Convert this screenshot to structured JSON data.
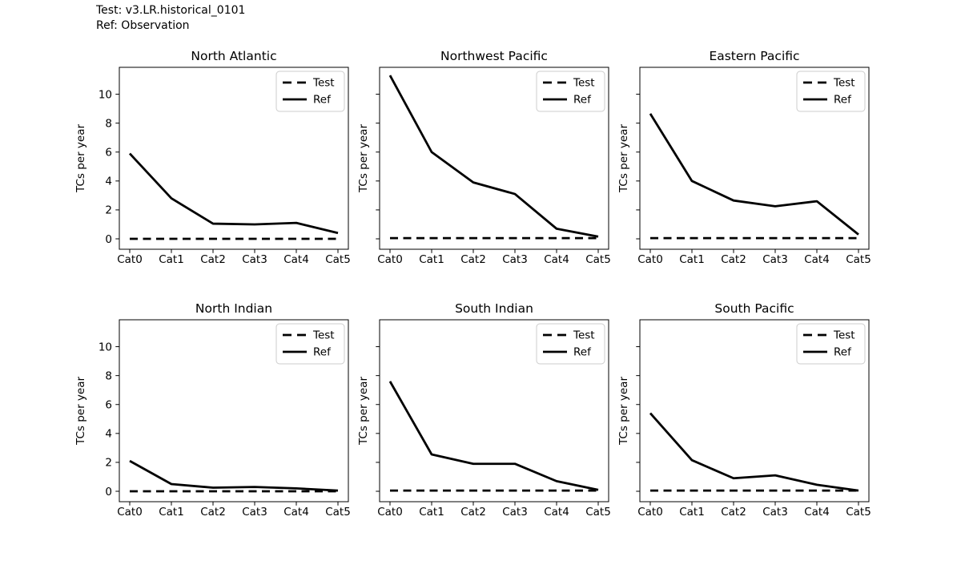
{
  "header": {
    "line1": "Test: v3.LR.historical_0101",
    "line2": "Ref: Observation"
  },
  "colors": {
    "line": "#000000",
    "legend_border": "#cccccc",
    "background": "#ffffff"
  },
  "chart_data": [
    {
      "type": "line",
      "title": "North Atlantic",
      "ylabel": "TCs per year",
      "categories": [
        "Cat0",
        "Cat1",
        "Cat2",
        "Cat3",
        "Cat4",
        "Cat5"
      ],
      "yticks": [
        0,
        2,
        4,
        6,
        8,
        10
      ],
      "ylim": [
        -0.72,
        11.86
      ],
      "show_ytick_labels": true,
      "grid": false,
      "legend_position": "upper right",
      "series": [
        {
          "name": "Test",
          "style": "dashed",
          "values": [
            0.0,
            0.0,
            0.0,
            0.0,
            0.0,
            0.0
          ]
        },
        {
          "name": "Ref",
          "style": "solid",
          "values": [
            5.9,
            2.8,
            1.05,
            1.0,
            1.1,
            0.4
          ]
        }
      ]
    },
    {
      "type": "line",
      "title": "Northwest Pacific",
      "ylabel": "TCs per year",
      "categories": [
        "Cat0",
        "Cat1",
        "Cat2",
        "Cat3",
        "Cat4",
        "Cat5"
      ],
      "yticks": [
        0,
        2,
        4,
        6,
        8,
        10
      ],
      "ylim": [
        -0.72,
        11.86
      ],
      "show_ytick_labels": false,
      "grid": false,
      "legend_position": "upper right",
      "series": [
        {
          "name": "Test",
          "style": "dashed",
          "values": [
            0.05,
            0.05,
            0.05,
            0.05,
            0.05,
            0.05
          ]
        },
        {
          "name": "Ref",
          "style": "solid",
          "values": [
            11.3,
            6.0,
            3.9,
            3.1,
            0.7,
            0.15
          ]
        }
      ]
    },
    {
      "type": "line",
      "title": "Eastern Pacific",
      "ylabel": "TCs per year",
      "categories": [
        "Cat0",
        "Cat1",
        "Cat2",
        "Cat3",
        "Cat4",
        "Cat5"
      ],
      "yticks": [
        0,
        2,
        4,
        6,
        8,
        10
      ],
      "ylim": [
        -0.72,
        11.86
      ],
      "show_ytick_labels": false,
      "grid": false,
      "legend_position": "upper right",
      "series": [
        {
          "name": "Test",
          "style": "dashed",
          "values": [
            0.05,
            0.05,
            0.05,
            0.05,
            0.05,
            0.05
          ]
        },
        {
          "name": "Ref",
          "style": "solid",
          "values": [
            8.65,
            4.0,
            2.65,
            2.25,
            2.6,
            0.3
          ]
        }
      ]
    },
    {
      "type": "line",
      "title": "North Indian",
      "ylabel": "TCs per year",
      "categories": [
        "Cat0",
        "Cat1",
        "Cat2",
        "Cat3",
        "Cat4",
        "Cat5"
      ],
      "yticks": [
        0,
        2,
        4,
        6,
        8,
        10
      ],
      "ylim": [
        -0.72,
        11.86
      ],
      "show_ytick_labels": true,
      "grid": false,
      "legend_position": "upper right",
      "series": [
        {
          "name": "Test",
          "style": "dashed",
          "values": [
            0.0,
            0.0,
            0.0,
            0.0,
            0.0,
            0.0
          ]
        },
        {
          "name": "Ref",
          "style": "solid",
          "values": [
            2.1,
            0.5,
            0.25,
            0.3,
            0.2,
            0.05
          ]
        }
      ]
    },
    {
      "type": "line",
      "title": "South Indian",
      "ylabel": "TCs per year",
      "categories": [
        "Cat0",
        "Cat1",
        "Cat2",
        "Cat3",
        "Cat4",
        "Cat5"
      ],
      "yticks": [
        0,
        2,
        4,
        6,
        8,
        10
      ],
      "ylim": [
        -0.72,
        11.86
      ],
      "show_ytick_labels": false,
      "grid": false,
      "legend_position": "upper right",
      "series": [
        {
          "name": "Test",
          "style": "dashed",
          "values": [
            0.05,
            0.05,
            0.05,
            0.05,
            0.05,
            0.05
          ]
        },
        {
          "name": "Ref",
          "style": "solid",
          "values": [
            7.6,
            2.55,
            1.9,
            1.9,
            0.7,
            0.1
          ]
        }
      ]
    },
    {
      "type": "line",
      "title": "South Pacific",
      "ylabel": "TCs per year",
      "categories": [
        "Cat0",
        "Cat1",
        "Cat2",
        "Cat3",
        "Cat4",
        "Cat5"
      ],
      "yticks": [
        0,
        2,
        4,
        6,
        8,
        10
      ],
      "ylim": [
        -0.72,
        11.86
      ],
      "show_ytick_labels": false,
      "grid": false,
      "legend_position": "upper right",
      "series": [
        {
          "name": "Test",
          "style": "dashed",
          "values": [
            0.05,
            0.05,
            0.05,
            0.05,
            0.05,
            0.05
          ]
        },
        {
          "name": "Ref",
          "style": "solid",
          "values": [
            5.4,
            2.15,
            0.9,
            1.1,
            0.45,
            0.05
          ]
        }
      ]
    }
  ]
}
